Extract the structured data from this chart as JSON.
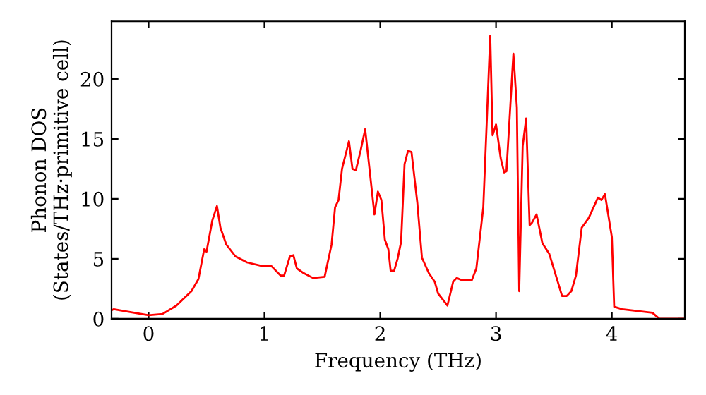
{
  "chart_data": {
    "type": "line",
    "xlabel": "Frequency (THz)",
    "ylabel": "Phonon DOS\n(States/THz·primitive cell)",
    "xlim": [
      -0.32,
      4.63
    ],
    "ylim": [
      0,
      24.8
    ],
    "xticks": [
      0,
      1,
      2,
      3,
      4
    ],
    "yticks": [
      0,
      5,
      10,
      15,
      20
    ],
    "grid": false,
    "legend": false,
    "marker": "none",
    "line_style": "solid",
    "series": [
      {
        "color": "#ff0000",
        "x": [
          -0.32,
          -0.3,
          -0.24,
          0,
          0.12,
          0.24,
          0.37,
          0.43,
          0.48,
          0.5,
          0.55,
          0.59,
          0.62,
          0.67,
          0.75,
          0.85,
          0.98,
          1.06,
          1.14,
          1.17,
          1.22,
          1.25,
          1.28,
          1.34,
          1.42,
          1.52,
          1.58,
          1.61,
          1.64,
          1.67,
          1.73,
          1.76,
          1.79,
          1.83,
          1.87,
          1.95,
          1.98,
          2.01,
          2.04,
          2.07,
          2.09,
          2.12,
          2.15,
          2.18,
          2.21,
          2.24,
          2.27,
          2.32,
          2.36,
          2.42,
          2.47,
          2.5,
          2.58,
          2.63,
          2.66,
          2.71,
          2.79,
          2.83,
          2.89,
          2.95,
          2.97,
          3.0,
          3.04,
          3.07,
          3.09,
          3.15,
          3.18,
          3.2,
          3.23,
          3.26,
          3.29,
          3.31,
          3.35,
          3.4,
          3.46,
          3.52,
          3.57,
          3.61,
          3.65,
          3.69,
          3.74,
          3.8,
          3.88,
          3.91,
          3.94,
          4.0,
          4.02,
          4.09,
          4.35,
          4.41,
          4.63
        ],
        "values": [
          0.7,
          0.8,
          0.7,
          0.3,
          0.4,
          1.1,
          2.3,
          3.3,
          5.8,
          5.6,
          8.2,
          9.4,
          7.6,
          6.2,
          5.2,
          4.7,
          4.4,
          4.4,
          3.6,
          3.6,
          5.2,
          5.3,
          4.2,
          3.8,
          3.4,
          3.5,
          6.2,
          9.3,
          9.9,
          12.5,
          14.8,
          12.5,
          12.4,
          14.0,
          15.8,
          8.7,
          10.6,
          9.9,
          6.6,
          5.8,
          4.0,
          4.0,
          5.0,
          6.4,
          12.9,
          14.0,
          13.9,
          9.7,
          5.1,
          3.8,
          3.1,
          2.1,
          1.1,
          3.1,
          3.4,
          3.2,
          3.2,
          4.2,
          9.3,
          23.6,
          15.3,
          16.2,
          13.4,
          12.2,
          12.3,
          22.1,
          17.6,
          2.3,
          14.4,
          16.7,
          7.8,
          8.0,
          8.7,
          6.3,
          5.4,
          3.5,
          1.9,
          1.9,
          2.3,
          3.6,
          7.6,
          8.4,
          10.1,
          9.9,
          10.4,
          6.8,
          1.0,
          0.8,
          0.5,
          0.0,
          0.0
        ]
      }
    ]
  }
}
